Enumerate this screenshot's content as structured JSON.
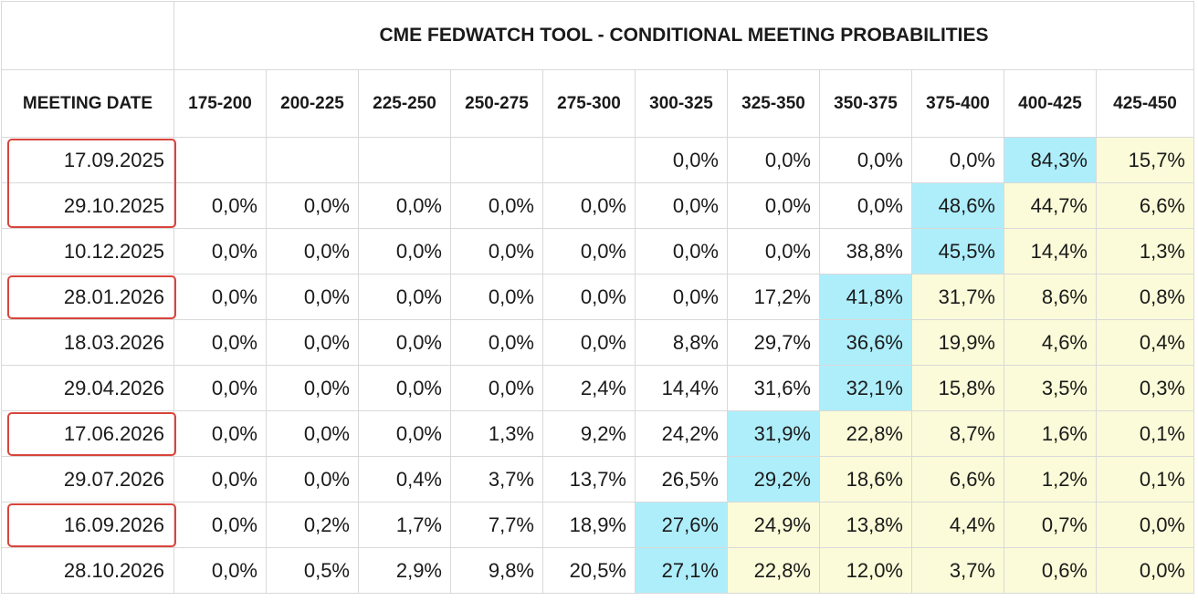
{
  "chart_data": {
    "type": "table",
    "title": "CME FEDWATCH TOOL - CONDITIONAL MEETING PROBABILITIES",
    "row_header_label": "MEETING DATE",
    "columns": [
      "175-200",
      "200-225",
      "225-250",
      "250-275",
      "275-300",
      "300-325",
      "325-350",
      "350-375",
      "375-400",
      "400-425",
      "425-450"
    ],
    "rows": [
      {
        "date": "17.09.2025",
        "values": [
          "",
          "",
          "",
          "",
          "",
          "0,0%",
          "0,0%",
          "0,0%",
          "0,0%",
          "84,3%",
          "15,7%"
        ],
        "highlighted": true
      },
      {
        "date": "29.10.2025",
        "values": [
          "0,0%",
          "0,0%",
          "0,0%",
          "0,0%",
          "0,0%",
          "0,0%",
          "0,0%",
          "0,0%",
          "48,6%",
          "44,7%",
          "6,6%"
        ],
        "highlighted": true
      },
      {
        "date": "10.12.2025",
        "values": [
          "0,0%",
          "0,0%",
          "0,0%",
          "0,0%",
          "0,0%",
          "0,0%",
          "0,0%",
          "38,8%",
          "45,5%",
          "14,4%",
          "1,3%"
        ],
        "highlighted": false
      },
      {
        "date": "28.01.2026",
        "values": [
          "0,0%",
          "0,0%",
          "0,0%",
          "0,0%",
          "0,0%",
          "0,0%",
          "17,2%",
          "41,8%",
          "31,7%",
          "8,6%",
          "0,8%"
        ],
        "highlighted": true
      },
      {
        "date": "18.03.2026",
        "values": [
          "0,0%",
          "0,0%",
          "0,0%",
          "0,0%",
          "0,0%",
          "8,8%",
          "29,7%",
          "36,6%",
          "19,9%",
          "4,6%",
          "0,4%"
        ],
        "highlighted": false
      },
      {
        "date": "29.04.2026",
        "values": [
          "0,0%",
          "0,0%",
          "0,0%",
          "0,0%",
          "2,4%",
          "14,4%",
          "31,6%",
          "32,1%",
          "15,8%",
          "3,5%",
          "0,3%"
        ],
        "highlighted": false
      },
      {
        "date": "17.06.2026",
        "values": [
          "0,0%",
          "0,0%",
          "0,0%",
          "1,3%",
          "9,2%",
          "24,2%",
          "31,9%",
          "22,8%",
          "8,7%",
          "1,6%",
          "0,1%"
        ],
        "highlighted": true
      },
      {
        "date": "29.07.2026",
        "values": [
          "0,0%",
          "0,0%",
          "0,4%",
          "3,7%",
          "13,7%",
          "26,5%",
          "29,2%",
          "18,6%",
          "6,6%",
          "1,2%",
          "0,1%"
        ],
        "highlighted": false
      },
      {
        "date": "16.09.2026",
        "values": [
          "0,0%",
          "0,2%",
          "1,7%",
          "7,7%",
          "18,9%",
          "27,6%",
          "24,9%",
          "13,8%",
          "4,4%",
          "0,7%",
          "0,0%"
        ],
        "highlighted": true
      },
      {
        "date": "28.10.2026",
        "values": [
          "0,0%",
          "0,5%",
          "2,9%",
          "9,8%",
          "20,5%",
          "27,1%",
          "22,8%",
          "12,0%",
          "3,7%",
          "0,6%",
          "0,0%"
        ],
        "highlighted": false
      }
    ],
    "colors": {
      "max_cell": "#aeeefb",
      "above_max": "#fbfbd9",
      "highlight_box": "#d9443b",
      "grid": "#d9d9d9"
    }
  }
}
